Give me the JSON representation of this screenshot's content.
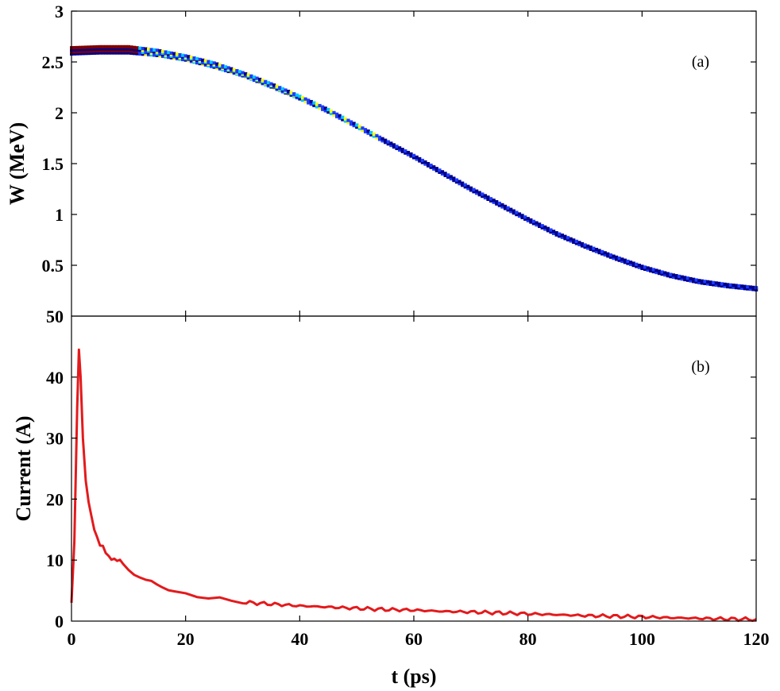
{
  "chart_data": [
    {
      "panel": "a",
      "panel_label": "(a)",
      "type": "scatter",
      "ylabel": "W (MeV)",
      "xlim": [
        0,
        120
      ],
      "ylim": [
        0,
        3
      ],
      "x_ticks": [
        0,
        20,
        40,
        60,
        80,
        100,
        120
      ],
      "y_ticks": [
        0.5,
        1,
        1.5,
        2,
        2.5,
        3
      ],
      "y_tick_labels": [
        "0.5",
        "1",
        "1.5",
        "2",
        "2.5",
        "3"
      ],
      "colormap": [
        "#00008b",
        "#1e3cff",
        "#00c8ff",
        "#ffff00",
        "#ff0000",
        "#7f0000"
      ],
      "series": [
        {
          "x": [
            0,
            5,
            10,
            15,
            20,
            25,
            30,
            35,
            40,
            45,
            50,
            55,
            60,
            65,
            70,
            75,
            80,
            85,
            90,
            95,
            100,
            105,
            110,
            115,
            120
          ],
          "y": [
            2.61,
            2.62,
            2.62,
            2.59,
            2.54,
            2.47,
            2.38,
            2.27,
            2.15,
            2.02,
            1.87,
            1.72,
            1.57,
            1.41,
            1.25,
            1.1,
            0.95,
            0.81,
            0.69,
            0.58,
            0.48,
            0.4,
            0.34,
            0.3,
            0.27
          ],
          "spread": [
            0.03,
            0.03,
            0.03,
            0.025,
            0.02,
            0.02,
            0.015,
            0.015,
            0.012,
            0.012,
            0.01,
            0.01,
            0.01,
            0.01,
            0.01,
            0.01,
            0.01,
            0.01,
            0.01,
            0.01,
            0.01,
            0.01,
            0.01,
            0.01,
            0.01
          ]
        }
      ]
    },
    {
      "panel": "b",
      "panel_label": "(b)",
      "type": "line",
      "xlabel": "t (ps)",
      "ylabel": "Current (A)",
      "xlim": [
        0,
        120
      ],
      "ylim": [
        0,
        50
      ],
      "x_ticks": [
        0,
        20,
        40,
        60,
        80,
        100,
        120
      ],
      "x_tick_labels": [
        "0",
        "20",
        "40",
        "60",
        "80",
        "100",
        "120"
      ],
      "y_ticks": [
        0,
        10,
        20,
        30,
        40,
        50
      ],
      "y_tick_labels": [
        "0",
        "10",
        "20",
        "30",
        "40",
        "50"
      ],
      "line_color": "#e31a1c",
      "series": [
        {
          "x": [
            0,
            0.5,
            1,
            1.3,
            1.6,
            2,
            2.5,
            3,
            3.5,
            4,
            4.5,
            5,
            5.5,
            6,
            6.5,
            7,
            7.5,
            8,
            8.5,
            9,
            10,
            11,
            12,
            13,
            14,
            15,
            16,
            17,
            18,
            20,
            22,
            24,
            26,
            28,
            30,
            35,
            40,
            45,
            50,
            55,
            60,
            65,
            70,
            75,
            80,
            85,
            90,
            95,
            100,
            105,
            110,
            115,
            120
          ],
          "y": [
            3,
            13,
            35,
            44.5,
            40,
            30,
            23,
            19.5,
            17,
            15,
            13.5,
            12.5,
            12.2,
            11.2,
            10.8,
            10,
            10.5,
            9.8,
            10.3,
            9.5,
            8.6,
            7.8,
            7.2,
            6.6,
            6.3,
            5.8,
            5.5,
            5.2,
            5,
            4.5,
            4.1,
            3.8,
            3.6,
            3.3,
            3.1,
            2.8,
            2.5,
            2.3,
            2.1,
            1.9,
            1.8,
            1.6,
            1.5,
            1.35,
            1.2,
            1.05,
            0.9,
            0.8,
            0.7,
            0.55,
            0.45,
            0.35,
            0.3
          ]
        }
      ]
    }
  ]
}
